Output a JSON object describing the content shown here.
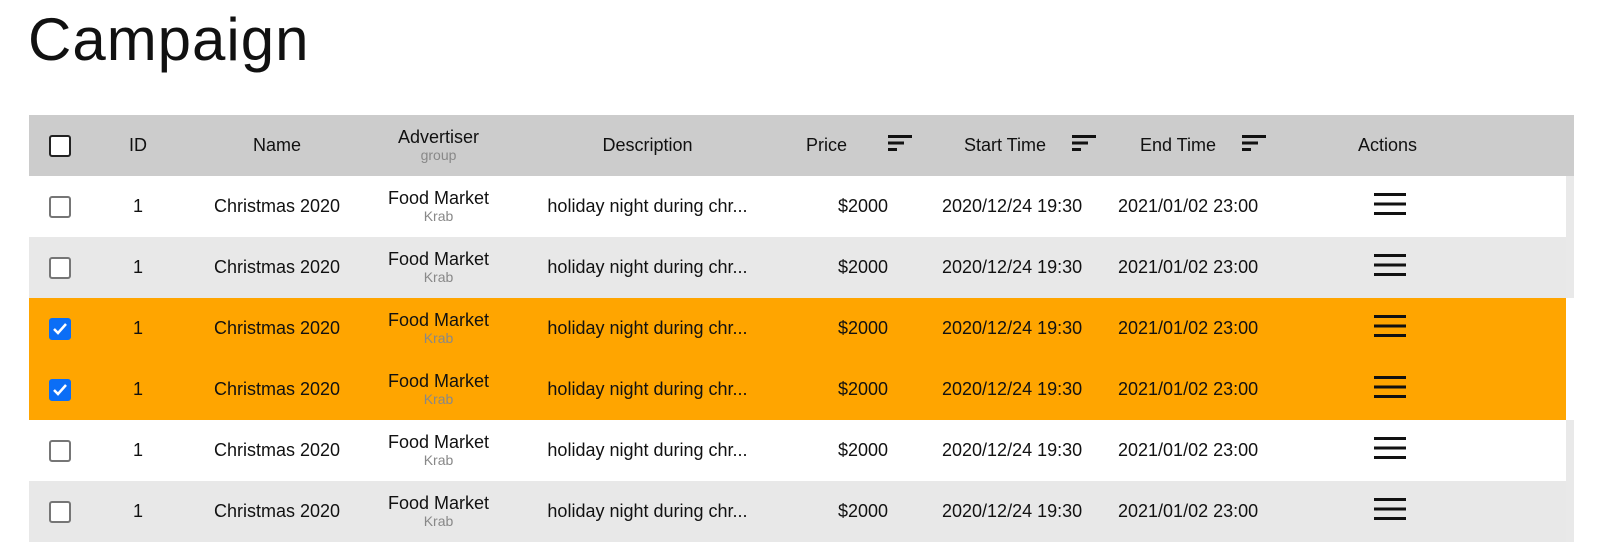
{
  "page": {
    "title": "Campaign"
  },
  "table": {
    "headers": {
      "id": "ID",
      "name": "Name",
      "advertiser": "Advertiser",
      "advertiser_sub": "group",
      "description": "Description",
      "price": "Price",
      "start_time": "Start Time",
      "end_time": "End Time",
      "actions": "Actions"
    },
    "rows": [
      {
        "checked": false,
        "shade": "light",
        "id": "1",
        "name": "Christmas 2020",
        "advertiser": "Food Market",
        "group": "Krab",
        "description": "holiday night during chr...",
        "price": "$2000",
        "start_time": "2020/12/24 19:30",
        "end_time": "2021/01/02 23:00"
      },
      {
        "checked": false,
        "shade": "dark",
        "id": "1",
        "name": "Christmas 2020",
        "advertiser": "Food Market",
        "group": "Krab",
        "description": "holiday night during chr...",
        "price": "$2000",
        "start_time": "2020/12/24 19:30",
        "end_time": "2021/01/02 23:00"
      },
      {
        "checked": true,
        "shade": "light",
        "id": "1",
        "name": "Christmas 2020",
        "advertiser": "Food Market",
        "group": "Krab",
        "description": "holiday night during chr...",
        "price": "$2000",
        "start_time": "2020/12/24 19:30",
        "end_time": "2021/01/02 23:00"
      },
      {
        "checked": true,
        "shade": "dark",
        "id": "1",
        "name": "Christmas 2020",
        "advertiser": "Food Market",
        "group": "Krab",
        "description": "holiday night during chr...",
        "price": "$2000",
        "start_time": "2020/12/24 19:30",
        "end_time": "2021/01/02 23:00"
      },
      {
        "checked": false,
        "shade": "light",
        "id": "1",
        "name": "Christmas 2020",
        "advertiser": "Food Market",
        "group": "Krab",
        "description": "holiday night during chr...",
        "price": "$2000",
        "start_time": "2020/12/24 19:30",
        "end_time": "2021/01/02 23:00"
      },
      {
        "checked": false,
        "shade": "dark",
        "id": "1",
        "name": "Christmas 2020",
        "advertiser": "Food Market",
        "group": "Krab",
        "description": "holiday night during chr...",
        "price": "$2000",
        "start_time": "2020/12/24 19:30",
        "end_time": "2021/01/02 23:00"
      }
    ]
  },
  "icons": {
    "sort": "sort-icon",
    "actions_menu": "hamburger-menu-icon",
    "check": "checkmark-icon"
  },
  "colors": {
    "header_bg": "#cccccc",
    "row_dark": "#e8e8e8",
    "row_light": "#ffffff",
    "selected_row": "#ffa500",
    "checkbox_checked": "#0b6ef6"
  }
}
